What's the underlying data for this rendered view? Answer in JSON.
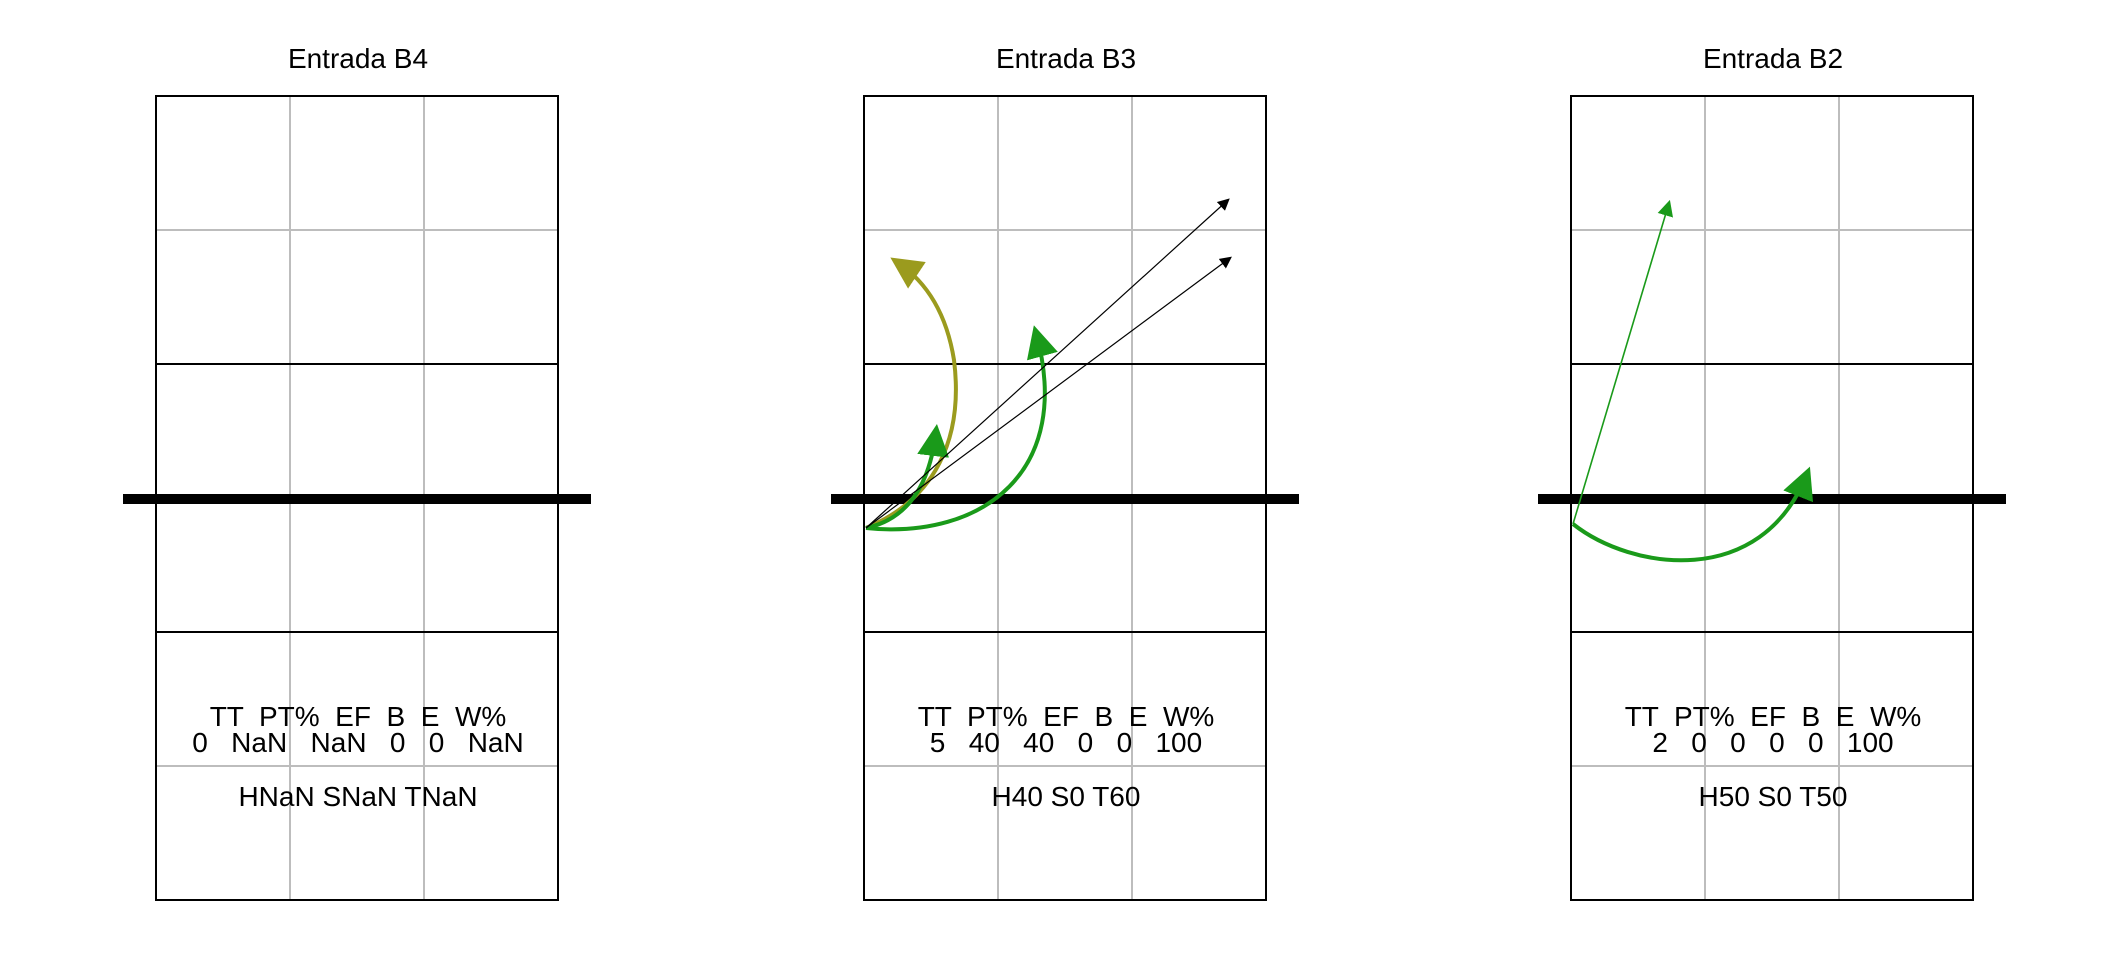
{
  "panels": [
    {
      "title": "Entrada B4",
      "stats_header": "TT  PT%  EF  B  E  W%",
      "stats_values": "0   NaN   NaN   0   0   NaN",
      "summary": "HNaN SNaN TNaN",
      "arrows": []
    },
    {
      "title": "Entrada B3",
      "stats_header": "TT  PT%  EF  B  E  W%",
      "stats_values": "5   40   40   0   0   100",
      "summary": "H40 S0 T60",
      "arrows": [
        {
          "kind": "curve",
          "color": "#9b9b1e",
          "weight": "heavy"
        },
        {
          "kind": "curve",
          "color": "#1a9a1a",
          "weight": "heavy"
        },
        {
          "kind": "curve",
          "color": "#1a9a1a",
          "weight": "heavy"
        },
        {
          "kind": "straight",
          "color": "#000000",
          "weight": "thin"
        },
        {
          "kind": "straight",
          "color": "#000000",
          "weight": "thin"
        }
      ]
    },
    {
      "title": "Entrada B2",
      "stats_header": "TT  PT%  EF  B  E  W%",
      "stats_values": "2   0   0   0   0   100",
      "summary": "H50 S0 T50",
      "arrows": [
        {
          "kind": "straight",
          "color": "#1a9a1a",
          "weight": "thin"
        },
        {
          "kind": "curve",
          "color": "#1a9a1a",
          "weight": "heavy"
        }
      ]
    }
  ],
  "colors": {
    "grid": "#bdbdbd",
    "court_lines": "#000000",
    "net": "#000000",
    "olive": "#9b9b1e",
    "green": "#1a9a1a",
    "thin_black": "#000000"
  }
}
